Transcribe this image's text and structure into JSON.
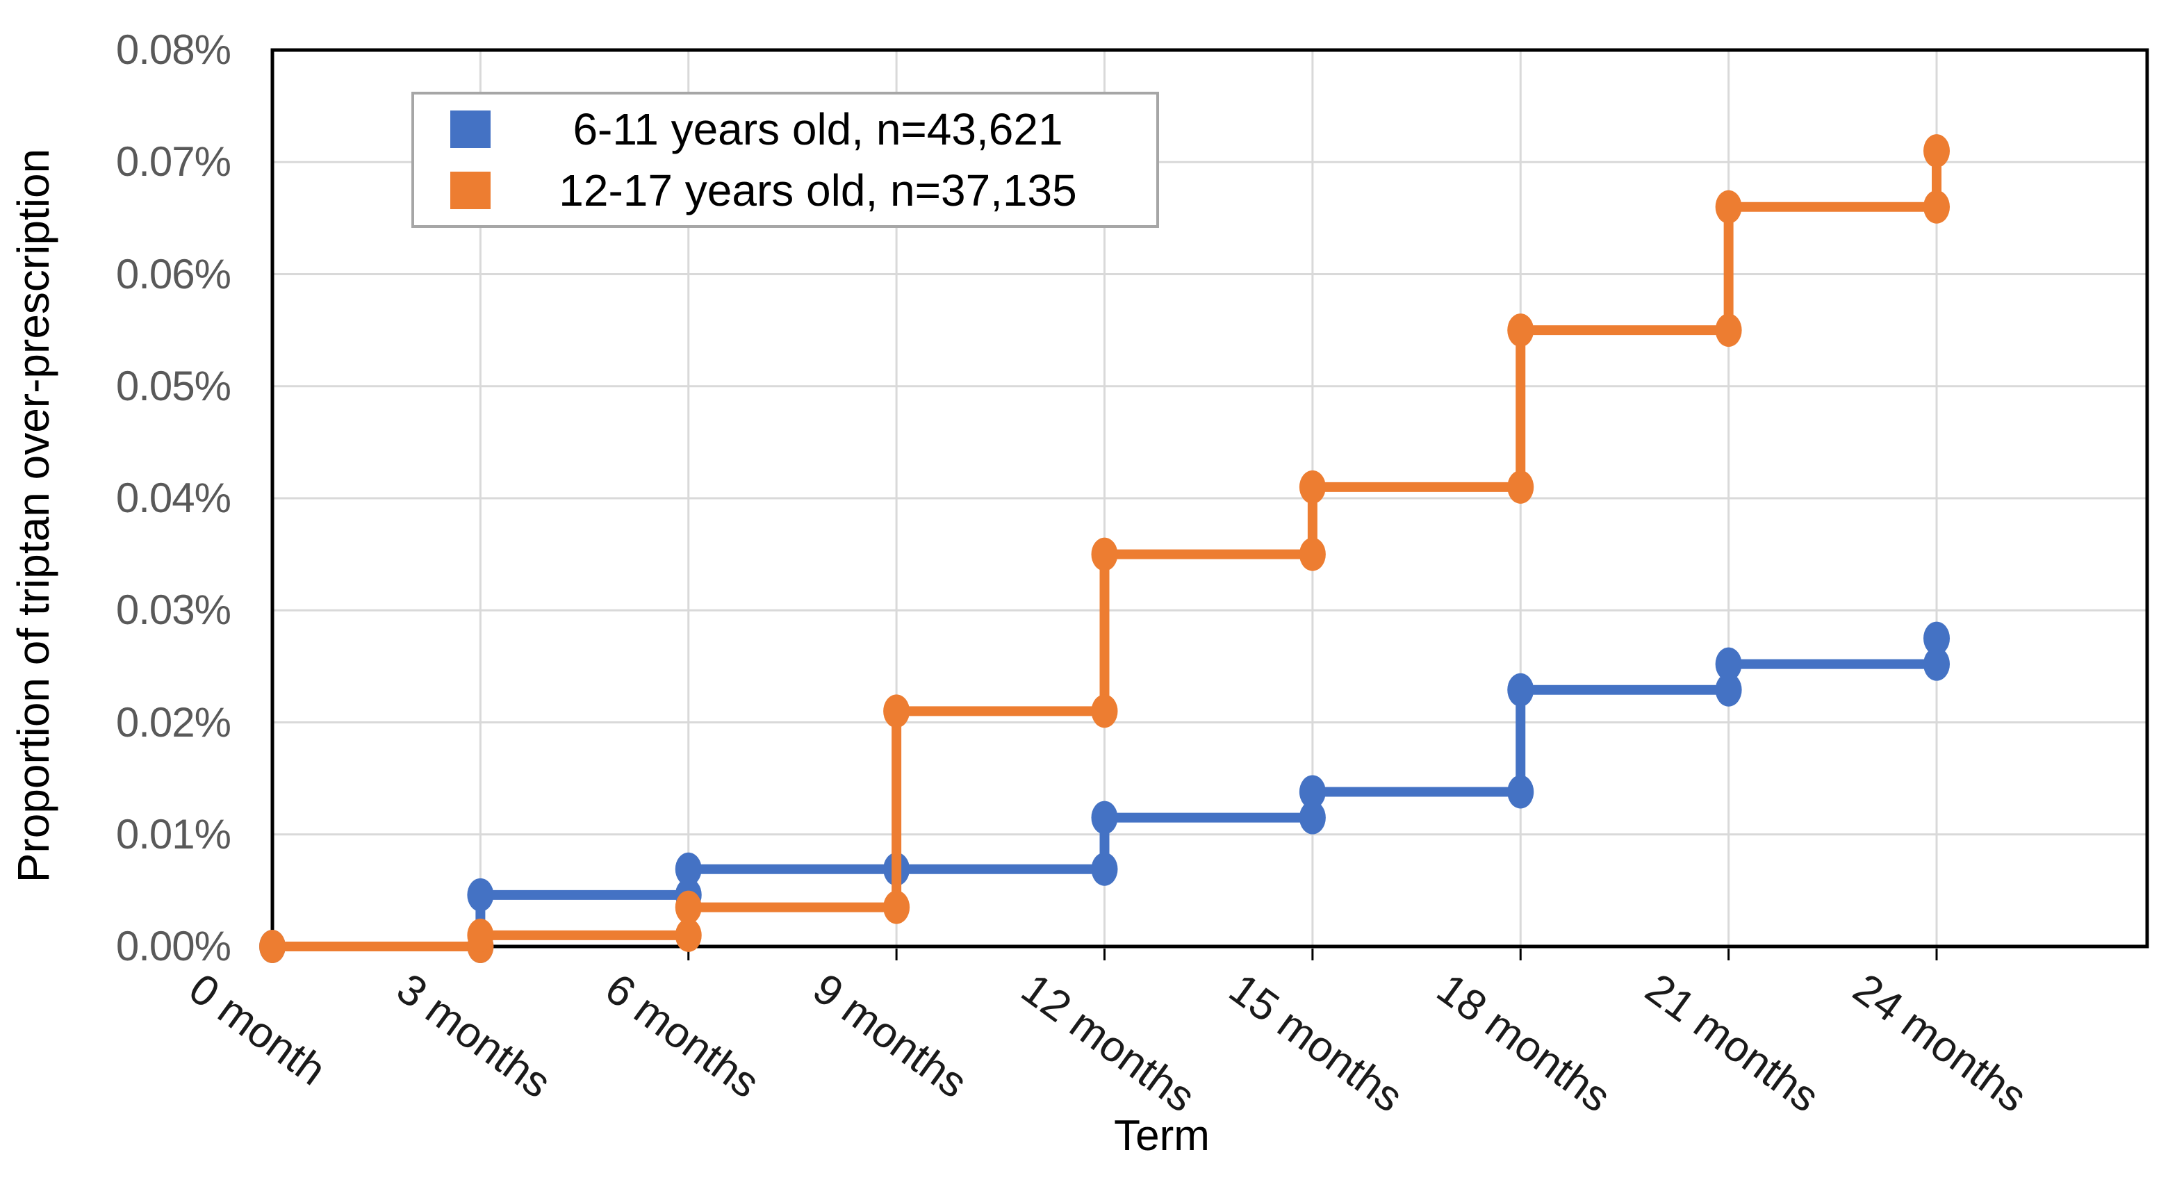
{
  "chart_data": {
    "type": "line",
    "subtype": "step-post-with-markers",
    "title": "",
    "xlabel": "Term",
    "ylabel": "Proportion of triptan over-prescription",
    "x_months": [
      0,
      3,
      6,
      9,
      12,
      15,
      18,
      21,
      24
    ],
    "categories": [
      "0 month",
      "3 months",
      "6 months",
      "9 months",
      "12 months",
      "15 months",
      "18 months",
      "21 months",
      "24 months"
    ],
    "series": [
      {
        "name": "6-11 years old, n=43,621",
        "color": "#4472C4",
        "values_percent": [
          0,
          0.0046,
          0.0069,
          0.0069,
          0.0115,
          0.0138,
          0.0229,
          0.0252,
          0.0275
        ]
      },
      {
        "name": "12-17 years old, n=37,135",
        "color": "#ED7D31",
        "values_percent": [
          0,
          0.001,
          0.0035,
          0.021,
          0.035,
          0.041,
          0.055,
          0.066,
          0.071
        ]
      }
    ],
    "ylim_percent": [
      0,
      0.08
    ],
    "y_tick_step_percent": 0.01,
    "y_tick_labels_bottom_to_top": [
      "0.00%",
      "0.01%",
      "0.02%",
      "0.03%",
      "0.04%",
      "0.05%",
      "0.06%",
      "0.07%",
      "0.08%"
    ],
    "grid": true,
    "legend_position": "inside-top-left"
  },
  "legend": {
    "items": [
      {
        "label": "6-11 years old, n=43,621",
        "color": "#4472C4"
      },
      {
        "label": "12-17 years old, n=37,135",
        "color": "#ED7D31"
      }
    ]
  },
  "style": {
    "background": "#FFFFFF",
    "plot_border_color": "#000000",
    "gridline_color": "#D9D9D9",
    "tick_mark_color": "#000000",
    "y_tick_label_color": "#595959",
    "x_tick_label_color": "#1A1A1A",
    "axis_title_color": "#000000",
    "legend_border_color": "#A6A6A6",
    "series_blue": "#4472C4",
    "series_orange": "#ED7D31"
  }
}
